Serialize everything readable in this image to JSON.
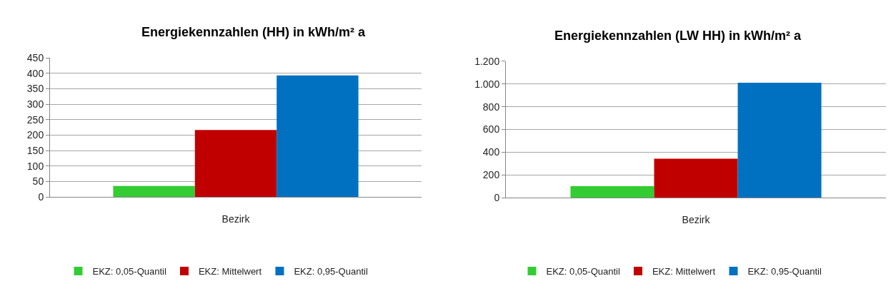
{
  "chart_data": [
    {
      "type": "bar",
      "title": "Energiekennzahlen (HH) in kWh/m² a",
      "categories": [
        "Bezirk"
      ],
      "series": [
        {
          "name": "EKZ: 0,05-Quantil",
          "color": "#33cc33",
          "values": [
            36
          ]
        },
        {
          "name": "EKZ: Mittelwert",
          "color": "#c00000",
          "values": [
            217
          ]
        },
        {
          "name": "EKZ: 0,95-Quantil",
          "color": "#0070c0",
          "values": [
            393
          ]
        }
      ],
      "ylim": [
        0,
        450
      ],
      "yticks": [
        0,
        50,
        100,
        150,
        200,
        250,
        300,
        350,
        400,
        450
      ],
      "grid": "y",
      "legend": "bottom"
    },
    {
      "type": "bar",
      "title": "Energiekennzahlen (LW HH) in kWh/m² a",
      "categories": [
        "Bezirk"
      ],
      "series": [
        {
          "name": "EKZ: 0,05-Quantil",
          "color": "#33cc33",
          "values": [
            102
          ]
        },
        {
          "name": "EKZ: Mittelwert",
          "color": "#c00000",
          "values": [
            343
          ]
        },
        {
          "name": "EKZ: 0,95-Quantil",
          "color": "#0070c0",
          "values": [
            1011
          ]
        }
      ],
      "ylim": [
        0,
        1200
      ],
      "yticks": [
        0,
        200,
        400,
        600,
        800,
        {
          "value": 1000,
          "label": "1.000"
        },
        {
          "value": 1200,
          "label": "1.200"
        }
      ],
      "grid": "y",
      "legend": "bottom"
    }
  ]
}
